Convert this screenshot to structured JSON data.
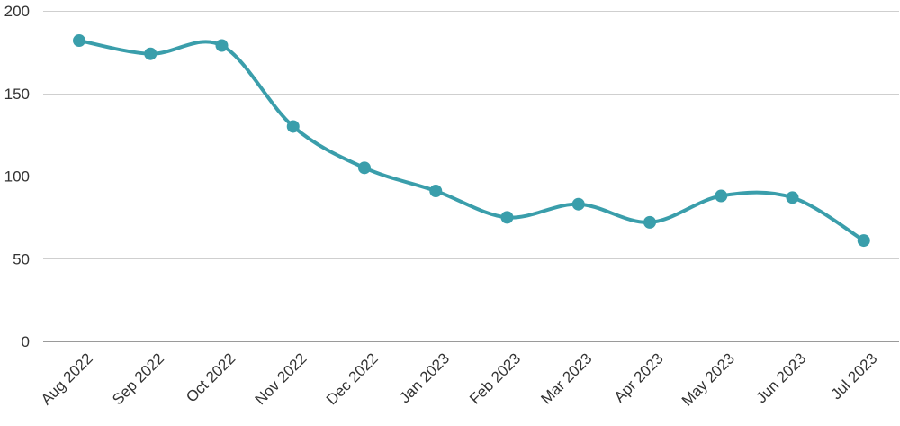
{
  "chart_data": {
    "type": "line",
    "title": "",
    "xlabel": "",
    "ylabel": "",
    "categories": [
      "Aug 2022",
      "Sep 2022",
      "Oct 2022",
      "Nov 2022",
      "Dec 2022",
      "Jan 2023",
      "Feb 2023",
      "Mar 2023",
      "Apr 2023",
      "May 2023",
      "Jun 2023",
      "Jul 2023"
    ],
    "series": [
      {
        "values": [
          182,
          174,
          179,
          130,
          105,
          91,
          75,
          83,
          72,
          88,
          87,
          61
        ],
        "color": "#3a9eab"
      }
    ],
    "ylim": [
      0,
      200
    ],
    "yticks": [
      "0",
      "50",
      "100",
      "150",
      "200"
    ],
    "grid": true,
    "legend": "none"
  }
}
